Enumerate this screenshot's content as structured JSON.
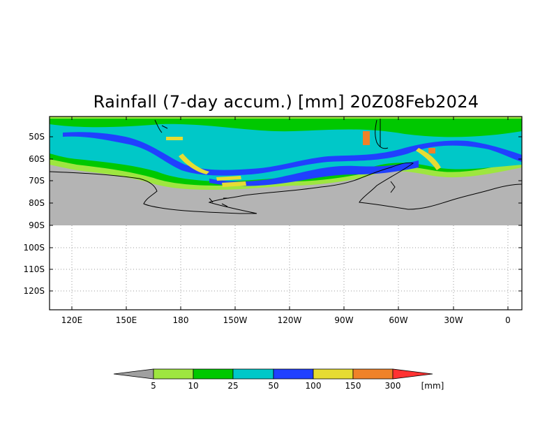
{
  "map": {
    "title": "Rainfall (7-day accum.) [mm] 20Z08Feb2024",
    "lat_labels": [
      "50S",
      "60S",
      "70S",
      "80S",
      "90S",
      "100S",
      "110S",
      "120S"
    ],
    "lon_labels": [
      "120E",
      "150E",
      "180",
      "150W",
      "120W",
      "90W",
      "60W",
      "30W",
      "0"
    ],
    "background_land_color": "#b4b4b4",
    "coastline_color": "#000000"
  },
  "legend": {
    "unit": "[mm]",
    "thresholds": [
      "5",
      "10",
      "25",
      "50",
      "100",
      "150",
      "300"
    ],
    "colors": [
      "#a0a0a0",
      "#9ee640",
      "#00c800",
      "#00c8c8",
      "#2040ff",
      "#e6dc32",
      "#f08228",
      "#ff3232"
    ]
  }
}
